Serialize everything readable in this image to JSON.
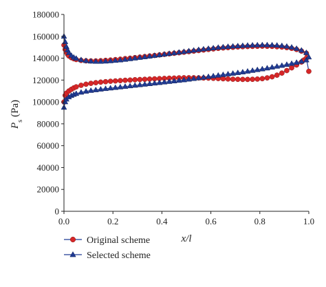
{
  "chart_data": {
    "type": "line",
    "xlabel": "x/l",
    "ylabel": "P_s (Pa)",
    "ylabel_parts": {
      "symbol": "P",
      "subscript": "s",
      "unit": "(Pa)"
    },
    "xlim": [
      0,
      1.0
    ],
    "ylim": [
      0,
      180000
    ],
    "xticks": [
      "0.0",
      "0.2",
      "0.4",
      "0.6",
      "0.8",
      "1.0"
    ],
    "yticks": [
      "0",
      "20000",
      "40000",
      "60000",
      "80000",
      "100000",
      "120000",
      "140000",
      "160000",
      "180000"
    ],
    "grid": false,
    "legend_position": "bottom",
    "series": [
      {
        "name": "Original scheme",
        "marker": "circle",
        "color": "#d62728",
        "line_color": "#1f3a93",
        "branches": [
          {
            "label": "upper",
            "x": [
              0.0,
              0.005,
              0.01,
              0.015,
              0.02,
              0.03,
              0.04,
              0.05,
              0.07,
              0.09,
              0.11,
              0.13,
              0.15,
              0.17,
              0.19,
              0.21,
              0.23,
              0.25,
              0.27,
              0.29,
              0.31,
              0.33,
              0.35,
              0.37,
              0.39,
              0.41,
              0.43,
              0.45,
              0.47,
              0.49,
              0.51,
              0.53,
              0.55,
              0.57,
              0.59,
              0.61,
              0.63,
              0.65,
              0.67,
              0.69,
              0.71,
              0.73,
              0.75,
              0.77,
              0.79,
              0.81,
              0.83,
              0.85,
              0.87,
              0.89,
              0.91,
              0.93,
              0.95,
              0.97,
              0.99
            ],
            "y": [
              152000,
              148000,
              145500,
              143500,
              142000,
              140500,
              139500,
              138800,
              138000,
              137600,
              137500,
              137500,
              137700,
              138000,
              138300,
              138700,
              139100,
              139600,
              140000,
              140500,
              141000,
              141500,
              142000,
              142500,
              143000,
              143500,
              144000,
              144500,
              145000,
              145500,
              146000,
              146500,
              147000,
              147500,
              148000,
              148500,
              149000,
              149400,
              149700,
              150000,
              150300,
              150500,
              150700,
              150800,
              150900,
              151000,
              150900,
              150800,
              150500,
              150200,
              149700,
              149000,
              148000,
              146500,
              144500
            ]
          },
          {
            "label": "lower",
            "x": [
              0.0,
              0.005,
              0.01,
              0.02,
              0.03,
              0.04,
              0.05,
              0.07,
              0.09,
              0.11,
              0.13,
              0.15,
              0.17,
              0.19,
              0.21,
              0.23,
              0.25,
              0.27,
              0.29,
              0.31,
              0.33,
              0.35,
              0.37,
              0.39,
              0.41,
              0.43,
              0.45,
              0.47,
              0.49,
              0.51,
              0.53,
              0.55,
              0.57,
              0.59,
              0.61,
              0.63,
              0.65,
              0.67,
              0.69,
              0.71,
              0.73,
              0.75,
              0.77,
              0.79,
              0.81,
              0.83,
              0.85,
              0.87,
              0.89,
              0.91,
              0.93,
              0.95,
              0.97,
              0.98,
              0.99,
              1.0
            ],
            "y": [
              100000,
              106000,
              108000,
              110000,
              111500,
              112800,
              113800,
              115200,
              116200,
              117000,
              117600,
              118100,
              118500,
              118900,
              119200,
              119500,
              119800,
              120000,
              120300,
              120500,
              120700,
              120900,
              121100,
              121300,
              121500,
              121700,
              121800,
              122000,
              122100,
              122100,
              122100,
              122000,
              121900,
              121800,
              121600,
              121400,
              121200,
              121000,
              120800,
              120700,
              120600,
              120600,
              120700,
              120900,
              121300,
              122000,
              123000,
              124500,
              126400,
              128700,
              131200,
              133800,
              136500,
              138300,
              140000,
              128000
            ]
          }
        ]
      },
      {
        "name": "Selected scheme",
        "marker": "triangle",
        "color": "#1f3a93",
        "line_color": "#1f3a93",
        "branches": [
          {
            "label": "upper",
            "x": [
              0.0,
              0.005,
              0.01,
              0.015,
              0.02,
              0.03,
              0.04,
              0.05,
              0.07,
              0.09,
              0.11,
              0.13,
              0.15,
              0.17,
              0.19,
              0.21,
              0.23,
              0.25,
              0.27,
              0.29,
              0.31,
              0.33,
              0.35,
              0.37,
              0.39,
              0.41,
              0.43,
              0.45,
              0.47,
              0.49,
              0.51,
              0.53,
              0.55,
              0.57,
              0.59,
              0.61,
              0.63,
              0.65,
              0.67,
              0.69,
              0.71,
              0.73,
              0.75,
              0.77,
              0.79,
              0.81,
              0.83,
              0.85,
              0.87,
              0.89,
              0.91,
              0.93,
              0.95,
              0.97,
              0.99
            ],
            "y": [
              160000,
              155000,
              150500,
              147500,
              145000,
              142500,
              140800,
              139800,
              138500,
              137700,
              137200,
              137000,
              137000,
              137200,
              137500,
              137900,
              138300,
              138800,
              139400,
              140000,
              140600,
              141200,
              141800,
              142400,
              143000,
              143600,
              144200,
              144800,
              145400,
              146000,
              146600,
              147200,
              147800,
              148300,
              148800,
              149300,
              149800,
              150200,
              150600,
              150900,
              151200,
              151500,
              151700,
              151900,
              152000,
              152100,
              152100,
              152000,
              151800,
              151400,
              150800,
              150000,
              148800,
              147200,
              145000
            ]
          },
          {
            "label": "lower",
            "x": [
              0.0,
              0.005,
              0.01,
              0.02,
              0.03,
              0.04,
              0.05,
              0.07,
              0.09,
              0.11,
              0.13,
              0.15,
              0.17,
              0.19,
              0.21,
              0.23,
              0.25,
              0.27,
              0.29,
              0.31,
              0.33,
              0.35,
              0.37,
              0.39,
              0.41,
              0.43,
              0.45,
              0.47,
              0.49,
              0.51,
              0.53,
              0.55,
              0.57,
              0.59,
              0.61,
              0.63,
              0.65,
              0.67,
              0.69,
              0.71,
              0.73,
              0.75,
              0.77,
              0.79,
              0.81,
              0.83,
              0.85,
              0.87,
              0.89,
              0.91,
              0.93,
              0.95,
              0.97,
              0.99,
              1.0
            ],
            "y": [
              95000,
              100000,
              102500,
              104500,
              105800,
              106800,
              107600,
              108800,
              109700,
              110400,
              111000,
              111600,
              112100,
              112600,
              113100,
              113600,
              114100,
              114600,
              115100,
              115600,
              116100,
              116600,
              117100,
              117600,
              118100,
              118600,
              119100,
              119600,
              120100,
              120700,
              121300,
              121900,
              122500,
              123100,
              123700,
              124300,
              124900,
              125500,
              126100,
              126700,
              127300,
              128000,
              128700,
              129400,
              130100,
              130900,
              131700,
              132500,
              133300,
              134200,
              135100,
              136100,
              137100,
              138300,
              141000
            ]
          }
        ]
      }
    ]
  }
}
